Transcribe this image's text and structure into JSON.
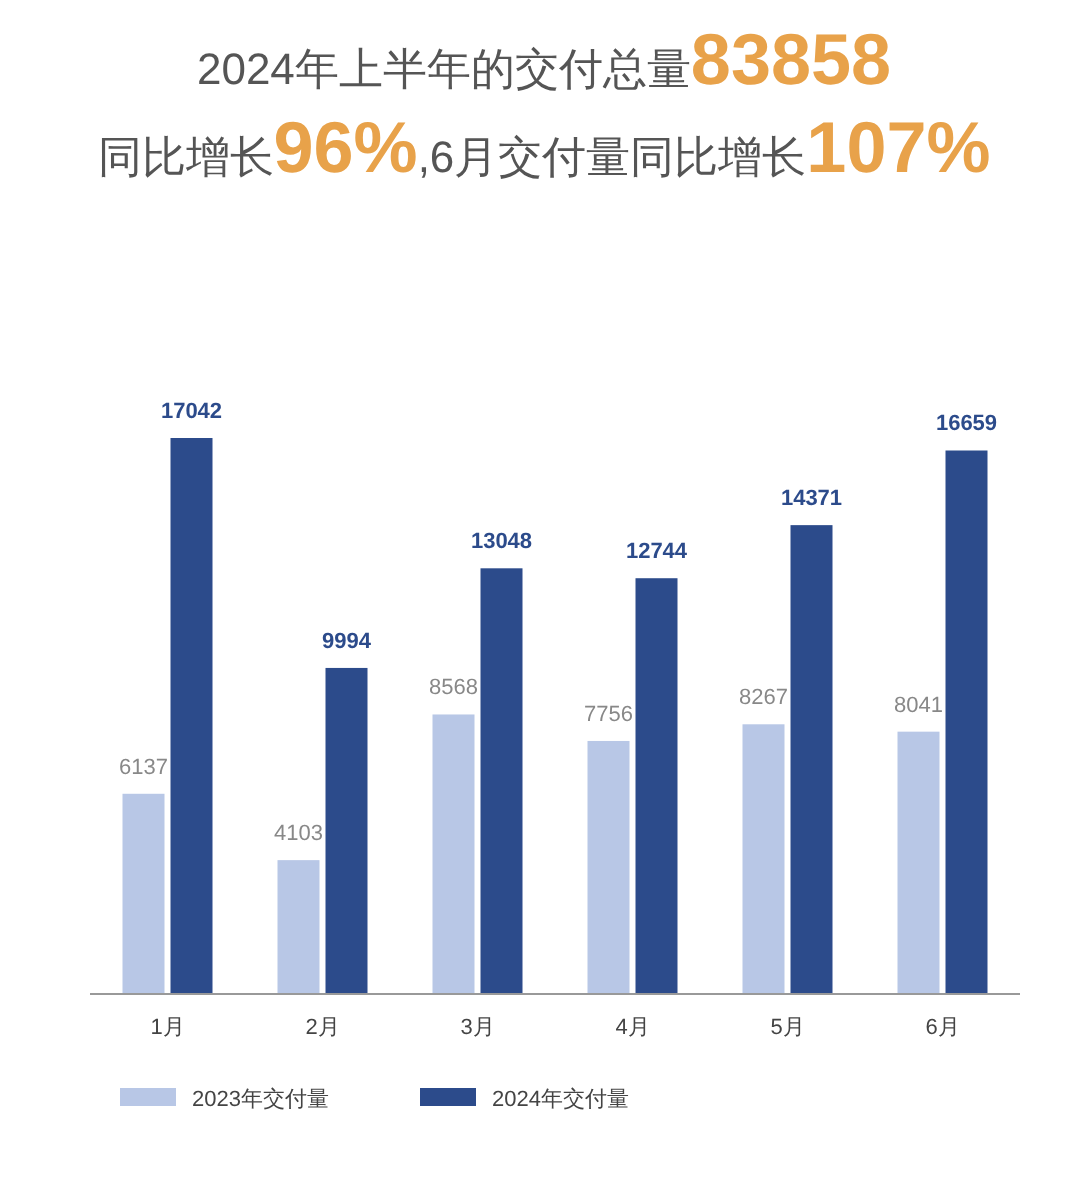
{
  "chart_data": {
    "type": "bar",
    "title": "2024年上半年的交付总量83858",
    "subtitle": "同比增长96%,6月交付量同比增长107%",
    "categories": [
      "1月",
      "2月",
      "3月",
      "4月",
      "5月",
      "6月"
    ],
    "series": [
      {
        "name": "2023年交付量",
        "color": "#b8c7e6",
        "values": [
          6137,
          4103,
          8568,
          7756,
          8267,
          8041
        ]
      },
      {
        "name": "2024年交付量",
        "color": "#2c4b8b",
        "values": [
          17042,
          9994,
          13048,
          12744,
          14371,
          16659
        ]
      }
    ],
    "data_labels": true,
    "legend": "bottom left",
    "tick_labels": "x"
  }
}
